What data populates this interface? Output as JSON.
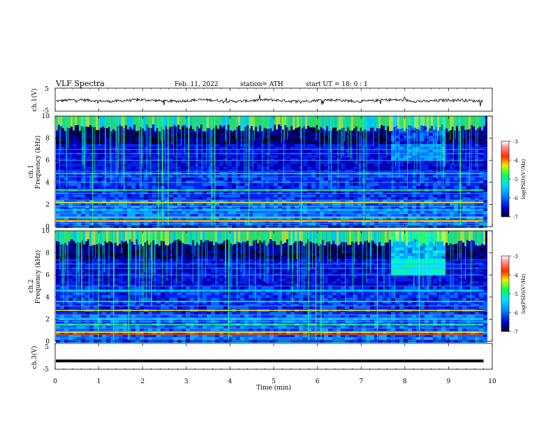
{
  "header": {
    "title": "VLF  Spectra",
    "date": "Feb. 11, 2022",
    "station": "station= ATH",
    "start": "start  UT  =    18: 0   : 1"
  },
  "chart_data": [
    {
      "type": "line",
      "panel": "ch1-waveform",
      "ylabel": "ch.1(V)",
      "ylim": [
        -5,
        5
      ],
      "yticks": [
        "5",
        "-5"
      ],
      "xlim": [
        0,
        10
      ],
      "description_level": "trace near -0.5 V with small spikes",
      "color": "#000000"
    },
    {
      "type": "heatmap",
      "panel": "ch1-spectrogram",
      "ylabel": "ch.1\nFrequency  (kHz)",
      "ylabel_lines": [
        "ch.1",
        "Frequency  (kHz)"
      ],
      "ylim": [
        0,
        10
      ],
      "yticks": [
        "0",
        "2",
        "4",
        "6",
        "8",
        "10"
      ],
      "xlim": [
        0,
        10
      ],
      "data_end_min": 9.8,
      "colorbar": {
        "label": "log(PSD)(V²/Hz)",
        "range": [
          -7,
          -3
        ],
        "ticks": [
          "-3",
          "-4",
          "-5",
          "-6",
          "-7"
        ],
        "colors": [
          "#000033",
          "#0000ff",
          "#00aaff",
          "#00ff66",
          "#ffee00",
          "#ff2200",
          "#ffffff"
        ]
      },
      "bands_khz": [
        0.3,
        0.6,
        0.9,
        1.2,
        1.5,
        1.8,
        2.1,
        2.4,
        3.0,
        3.3,
        4.0,
        4.5,
        5.0,
        6.0,
        6.6,
        7.0
      ],
      "bright_bands_khz": [
        0.5,
        0.8,
        1.5,
        2.2,
        3.3,
        4.8
      ]
    },
    {
      "type": "heatmap",
      "panel": "ch2-spectrogram",
      "ylabel": "ch.2\nFrequency  (kHz)",
      "ylabel_lines": [
        "ch.2",
        "Frequency  (kHz)"
      ],
      "ylim": [
        0,
        10
      ],
      "yticks": [
        "0",
        "2",
        "4",
        "6",
        "8",
        "10"
      ],
      "xlim": [
        0,
        10
      ],
      "data_end_min": 9.8,
      "colorbar": {
        "label": "log(PSD)(V²/Hz)",
        "range": [
          -7,
          -3
        ],
        "ticks": [
          "-3",
          "-4",
          "-5",
          "-6",
          "-7"
        ]
      },
      "bands_khz": [
        0.3,
        0.6,
        0.9,
        1.2,
        1.5,
        1.8,
        2.1,
        2.4,
        2.8,
        3.2,
        3.6,
        4.5,
        5.0,
        6.0,
        6.6,
        7.0
      ],
      "bright_bands_khz": [
        0.8,
        1.5,
        2.0,
        2.8,
        3.6,
        4.6
      ]
    },
    {
      "type": "line",
      "panel": "ch3-waveform",
      "ylabel": "ch.3(V)",
      "ylim": [
        -5,
        5
      ],
      "yticks": [
        "5",
        "-5"
      ],
      "xlim": [
        0,
        10
      ],
      "level_v": -1.8,
      "color": "#000000"
    }
  ],
  "xaxis": {
    "label": "Time  (min)",
    "ticks": [
      "0",
      "1",
      "2",
      "3",
      "4",
      "5",
      "6",
      "7",
      "8",
      "9",
      "10"
    ]
  }
}
